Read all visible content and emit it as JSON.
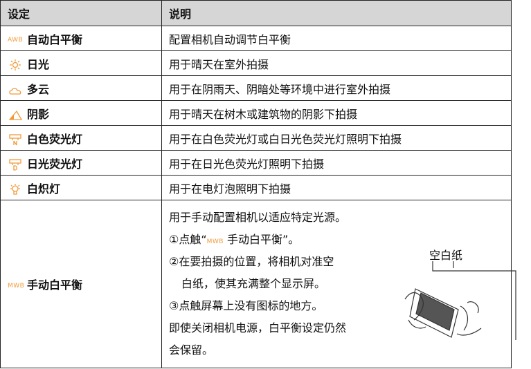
{
  "table": {
    "header": [
      "设定",
      "说明"
    ],
    "rows": [
      {
        "icon": "AWB",
        "setting": "自动白平衡",
        "description": "配置相机自动调节白平衡"
      },
      {
        "setting": "日光",
        "description": "用于晴天在室外拍摄"
      },
      {
        "setting": "多云",
        "description": "用于在阴雨天、阴暗处等环境中进行室外拍摄"
      },
      {
        "setting": "阴影",
        "description": "用于晴天在树木或建筑物的阴影下拍摄"
      },
      {
        "setting": "白色荧光灯",
        "description": "用于在白色荧光灯或白日光色荧光灯照明下拍摄"
      },
      {
        "setting": "日光荧光灯",
        "description": "用于在日光色荧光灯照明下拍摄"
      },
      {
        "setting": "白炽灯",
        "description": "用于在电灯泡照明下拍摄"
      },
      {
        "icon": "MWB",
        "setting": "手动白平衡",
        "description": [
          "用于手动配置相机以适应特定光源。",
          [
            "①点触“",
            "MWB",
            "手动白平衡”。"
          ],
          "②在要拍摄的位置，将相机对准空",
          "白纸，使其充满整个显示屏。",
          "③点触屏幕上没有图标的地方。",
          "即使关闭相机电源，白平衡设定仍然",
          "会保留。"
        ]
      }
    ]
  },
  "figure": {
    "label": "空白纸"
  }
}
